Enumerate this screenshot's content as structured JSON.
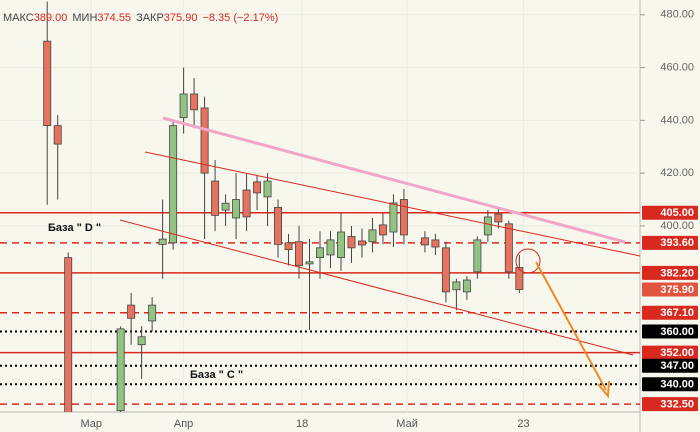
{
  "chart_data": {
    "type": "candlestick",
    "header": [
      {
        "label": "МАКС",
        "value": "389.00"
      },
      {
        "label": "МИН",
        "value": "374.55"
      },
      {
        "label": "ЗАКР",
        "value": "375.90"
      },
      {
        "label": "",
        "value": "−8.35 (−2.17%)"
      }
    ],
    "x": [
      0,
      1,
      2,
      7,
      8,
      9,
      10,
      11,
      12,
      13,
      14,
      15,
      16,
      17,
      18,
      19,
      20,
      21,
      22,
      23,
      24,
      25,
      26,
      27,
      28,
      29,
      30,
      31,
      32,
      33,
      34,
      36,
      37,
      38,
      39,
      40,
      41,
      42,
      43,
      44,
      45
    ],
    "open": [
      470,
      438,
      388,
      330,
      370,
      355,
      364,
      393,
      393.6,
      441,
      450,
      444.7,
      417,
      406,
      403,
      413.6,
      416.7,
      411,
      407,
      393.6,
      394,
      385.6,
      388,
      389,
      388,
      396,
      394.3,
      394,
      400.4,
      397.7,
      410,
      395.5,
      394.7,
      391.7,
      375.8,
      375,
      382.6,
      396.6,
      404.5,
      400.8,
      384.25
    ],
    "high": [
      485,
      442,
      390,
      362,
      374.6,
      362,
      373,
      410,
      440,
      460,
      456,
      449,
      425,
      412,
      420,
      420,
      419,
      420,
      410,
      397,
      400,
      395,
      398,
      398,
      405,
      400,
      399,
      403,
      405,
      412,
      414,
      398,
      397,
      394,
      380,
      381,
      396,
      406,
      407,
      402,
      389
    ],
    "low": [
      408,
      410,
      320,
      325,
      355,
      342,
      360,
      380,
      391,
      435,
      437,
      395,
      398,
      400,
      395,
      398,
      406,
      400,
      388,
      385,
      380,
      360.6,
      380,
      384,
      383,
      386,
      388,
      390,
      393,
      392,
      393,
      390,
      389,
      371,
      368,
      372,
      380,
      394,
      399,
      380,
      374.55
    ],
    "close": [
      438,
      431,
      325,
      361,
      365,
      358,
      370,
      395,
      438,
      450,
      444,
      420,
      404,
      408.6,
      410,
      403.4,
      412.5,
      417,
      393,
      391,
      385,
      386.4,
      391.7,
      394.7,
      397.7,
      391.7,
      392.8,
      398.5,
      396.6,
      408.7,
      396.6,
      392.8,
      392,
      375,
      378.8,
      379.5,
      394.7,
      403.4,
      401.5,
      382.6,
      375.9
    ],
    "up_color": "#93c383",
    "down_color": "#e5735f",
    "xlim": [
      -4.5,
      56.5
    ],
    "ylim": [
      329.5,
      485.6
    ],
    "xticks": [
      {
        "value": 4.2,
        "label": "Мар"
      },
      {
        "value": 13,
        "label": "Апр"
      },
      {
        "value": 24.3,
        "label": "18"
      },
      {
        "value": 34.3,
        "label": "Май"
      },
      {
        "value": 45.4,
        "label": "23"
      }
    ],
    "yticks": [
      {
        "value": 480,
        "label": "480.00"
      },
      {
        "value": 460,
        "label": "460.00"
      },
      {
        "value": 440,
        "label": "440.00"
      },
      {
        "value": 420,
        "label": "420.00"
      },
      {
        "value": 400,
        "label": "400.00"
      }
    ],
    "levels": [
      {
        "value": 405,
        "label": "405.00",
        "style": "solid",
        "color": "#d9281e"
      },
      {
        "value": 393.6,
        "label": "393.60",
        "style": "dashed",
        "color": "#d9281e"
      },
      {
        "value": 382.2,
        "label": "382.20",
        "style": "solid",
        "color": "#d9281e"
      },
      {
        "value": 367.1,
        "label": "367.10",
        "style": "dashed",
        "color": "#d9281e"
      },
      {
        "value": 360,
        "label": "360.00",
        "style": "dotted",
        "color": "#000000"
      },
      {
        "value": 352,
        "label": "352.00",
        "style": "solid",
        "color": "#d9281e"
      },
      {
        "value": 347,
        "label": "347.00",
        "style": "dotted",
        "color": "#000000"
      },
      {
        "value": 340,
        "label": "340.00",
        "style": "dotted",
        "color": "#000000"
      },
      {
        "value": 332.5,
        "label": "332.50",
        "style": "dashed",
        "color": "#d9281e"
      }
    ],
    "last_price": {
      "value": 375.9,
      "label": "375.90",
      "color": "#e0533f"
    },
    "annotations": [
      "База \" D \"",
      "База \" C \""
    ]
  }
}
